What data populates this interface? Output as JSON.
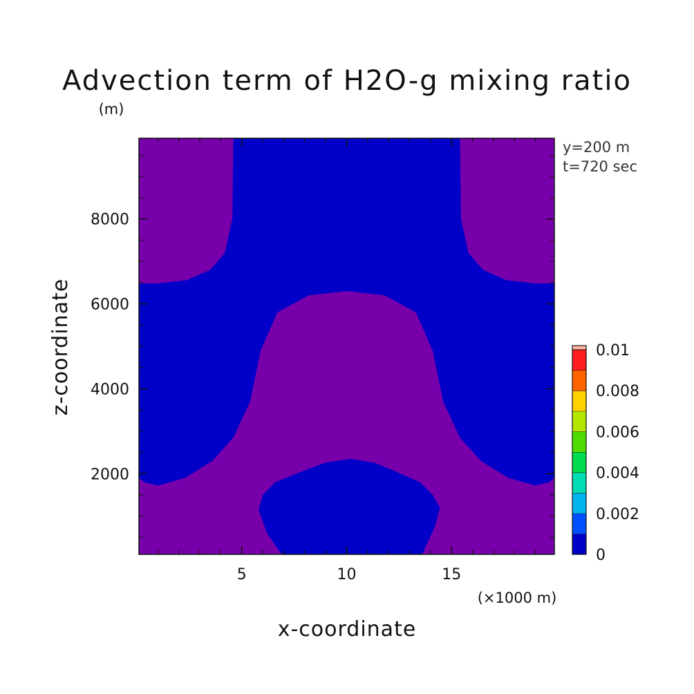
{
  "chart_data": {
    "type": "heatmap",
    "title": "Advection term of H2O-g mixing ratio",
    "xlabel": "x-coordinate",
    "ylabel": "z-coordinate",
    "x_unit": "(×1000 m)",
    "y_unit": "(m)",
    "info_lines": [
      "y=200 m",
      "t=720 sec"
    ],
    "xlim": [
      0.1,
      19.9
    ],
    "ylim": [
      100,
      9900
    ],
    "xticks": [
      5,
      10,
      15
    ],
    "yticks": [
      2000,
      4000,
      6000,
      8000
    ],
    "colorbar": {
      "range": [
        0,
        0.01
      ],
      "levels": [
        0,
        0.001,
        0.002,
        0.003,
        0.004,
        0.005,
        0.006,
        0.007,
        0.008,
        0.009,
        0.01
      ],
      "labels": [
        "0",
        "0.002",
        "0.004",
        "0.006",
        "0.008",
        "0.01"
      ],
      "label_values": [
        0,
        0.002,
        0.004,
        0.006,
        0.008,
        0.01
      ],
      "colors": [
        "#0000c8",
        "#0050ff",
        "#00b4f0",
        "#00dcb4",
        "#00dc50",
        "#50dc00",
        "#b4e600",
        "#ffd200",
        "#ff6400",
        "#ff1e1e"
      ],
      "under_color": "#7800aa"
    },
    "regions": [
      {
        "name": "below-0",
        "color": "#7800aa",
        "fill": "background"
      },
      {
        "name": "0-0.001",
        "color": "#0000c8",
        "fill": "upper-band",
        "outline": [
          [
            4.6,
            9900
          ],
          [
            4.55,
            8000
          ],
          [
            4.2,
            7200
          ],
          [
            3.5,
            6800
          ],
          [
            2.4,
            6560
          ],
          [
            1.0,
            6480
          ],
          [
            0.1,
            6480
          ],
          [
            0.1,
            1900
          ],
          [
            0.35,
            1800
          ],
          [
            1.0,
            1720
          ],
          [
            2.3,
            1900
          ],
          [
            3.6,
            2300
          ],
          [
            4.6,
            2850
          ],
          [
            5.4,
            3700
          ],
          [
            5.9,
            4900
          ],
          [
            6.7,
            5800
          ],
          [
            8.2,
            6200
          ],
          [
            10.0,
            6300
          ],
          [
            11.8,
            6200
          ],
          [
            13.3,
            5800
          ],
          [
            14.1,
            4900
          ],
          [
            14.6,
            3700
          ],
          [
            15.4,
            2850
          ],
          [
            16.4,
            2300
          ],
          [
            17.7,
            1900
          ],
          [
            19.0,
            1720
          ],
          [
            19.65,
            1800
          ],
          [
            19.9,
            1900
          ],
          [
            19.9,
            6480
          ],
          [
            19.0,
            6480
          ],
          [
            17.6,
            6560
          ],
          [
            16.5,
            6800
          ],
          [
            15.8,
            7200
          ],
          [
            15.45,
            8000
          ],
          [
            15.4,
            9900
          ]
        ]
      },
      {
        "name": "0-0.001",
        "color": "#0000c8",
        "fill": "lower-bubble",
        "outline": [
          [
            6.9,
            100
          ],
          [
            6.2,
            600
          ],
          [
            5.8,
            1150
          ],
          [
            6.0,
            1500
          ],
          [
            6.6,
            1800
          ],
          [
            8.0,
            2080
          ],
          [
            9.0,
            2260
          ],
          [
            10.2,
            2350
          ],
          [
            11.3,
            2260
          ],
          [
            12.2,
            2080
          ],
          [
            13.5,
            1800
          ],
          [
            14.1,
            1500
          ],
          [
            14.45,
            1200
          ],
          [
            14.2,
            750
          ],
          [
            13.6,
            100
          ]
        ]
      }
    ]
  }
}
